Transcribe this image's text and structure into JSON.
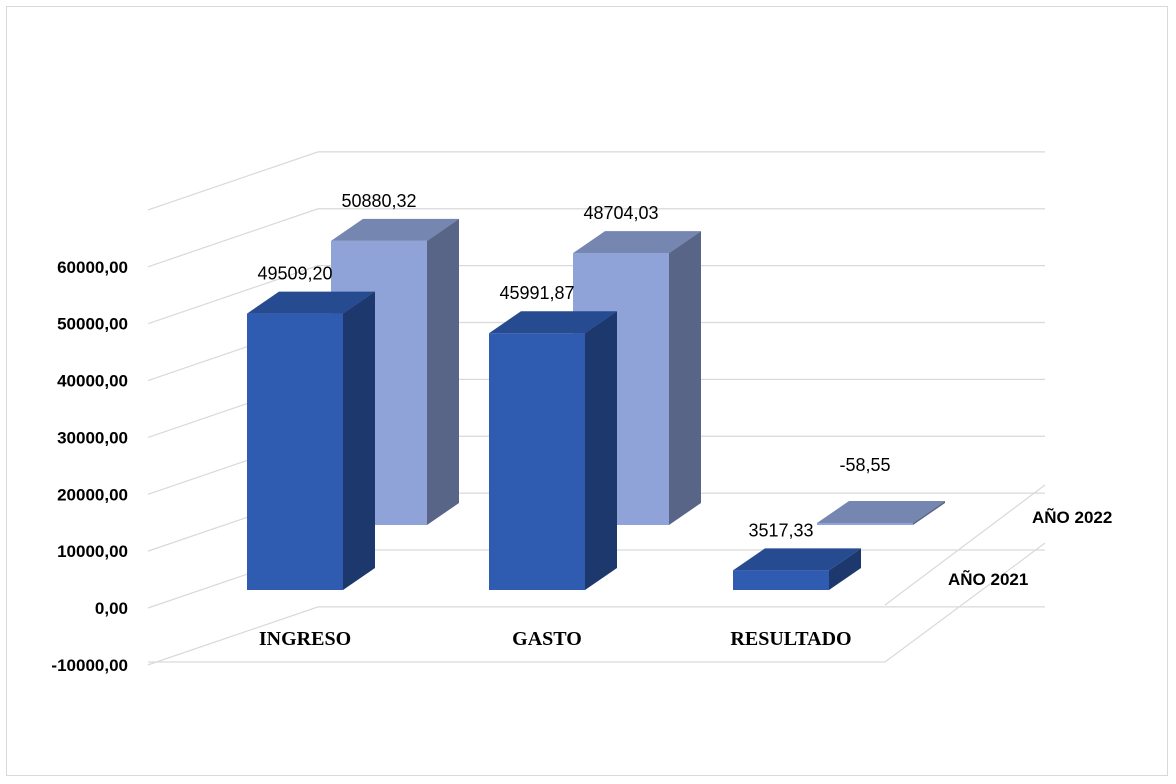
{
  "chart_data": {
    "type": "bar",
    "style": "3d-column",
    "categories": [
      "INGRESO",
      "GASTO",
      "RESULTADO"
    ],
    "series": [
      {
        "name": "AÑO 2021",
        "values": [
          49509.2,
          45991.87,
          3517.33
        ],
        "labels": [
          "49509,20",
          "45991,87",
          "3517,33"
        ],
        "color": "#2F5BB0"
      },
      {
        "name": "AÑO 2022",
        "values": [
          50880.32,
          48704.03,
          -58.55
        ],
        "labels": [
          "50880,32",
          "48704,03",
          "-58,55"
        ],
        "color": "#8FA3D8"
      }
    ],
    "yticks": [
      "-10000,00",
      "0,00",
      "10000,00",
      "20000,00",
      "30000,00",
      "40000,00",
      "50000,00",
      "60000,00"
    ],
    "ytick_values": [
      -10000,
      0,
      10000,
      20000,
      30000,
      40000,
      50000,
      60000
    ],
    "ylim": [
      -10000,
      60000
    ],
    "grid": true,
    "legend": "depth-axis-right"
  }
}
